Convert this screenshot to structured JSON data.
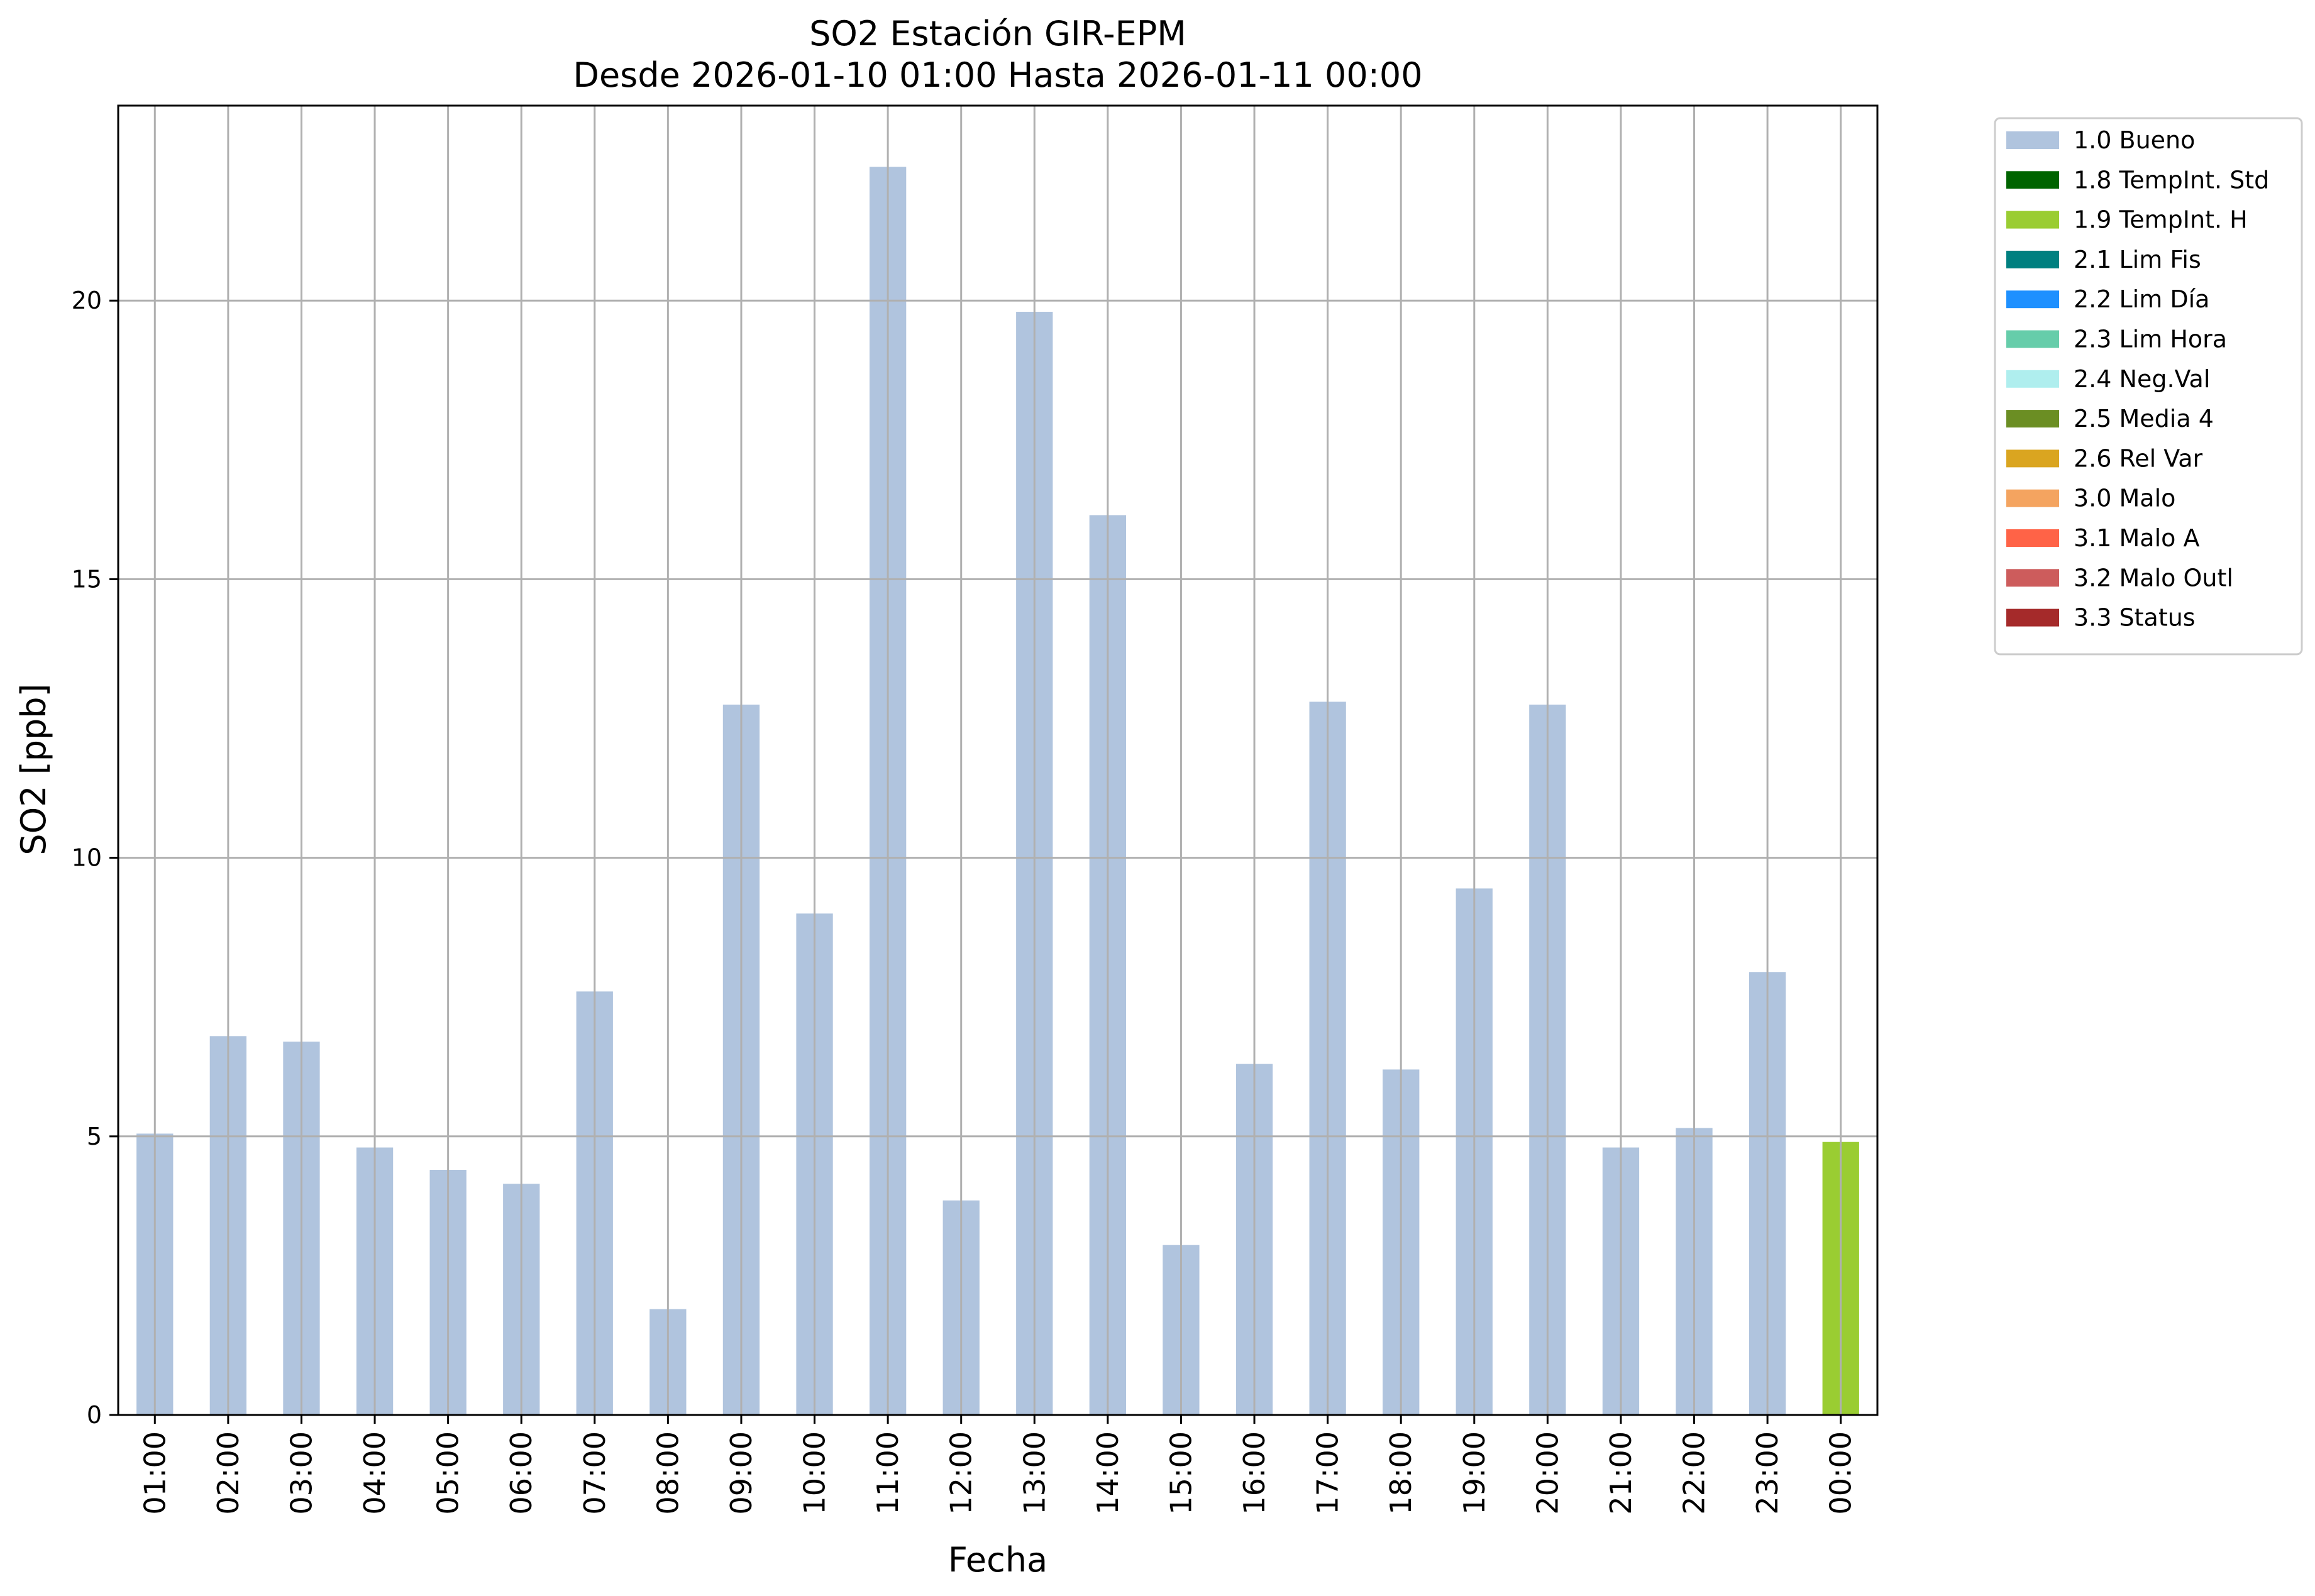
{
  "chart_data": {
    "type": "bar",
    "title": [
      "SO2 Estación GIR-EPM",
      "Desde 2026-01-10 01:00 Hasta 2026-01-11 00:00"
    ],
    "xlabel": "Fecha",
    "ylabel": "SO2 [ppb]",
    "ylim": [
      0,
      23.5
    ],
    "yticks": [
      0,
      5,
      10,
      15,
      20
    ],
    "grid": true,
    "legend_position": "outside-top-right",
    "categories": [
      "01:00",
      "02:00",
      "03:00",
      "04:00",
      "05:00",
      "06:00",
      "07:00",
      "08:00",
      "09:00",
      "10:00",
      "11:00",
      "12:00",
      "13:00",
      "14:00",
      "15:00",
      "16:00",
      "17:00",
      "18:00",
      "19:00",
      "20:00",
      "21:00",
      "22:00",
      "23:00",
      "00:00"
    ],
    "values": [
      5.05,
      6.8,
      6.7,
      4.8,
      4.4,
      4.15,
      7.6,
      1.9,
      12.75,
      9.0,
      22.4,
      3.85,
      19.8,
      16.15,
      3.05,
      6.3,
      12.8,
      6.2,
      9.45,
      12.75,
      4.8,
      5.15,
      7.95,
      4.9
    ],
    "flags": [
      "1.0 Bueno",
      "1.0 Bueno",
      "1.0 Bueno",
      "1.0 Bueno",
      "1.0 Bueno",
      "1.0 Bueno",
      "1.0 Bueno",
      "1.0 Bueno",
      "1.0 Bueno",
      "1.0 Bueno",
      "1.0 Bueno",
      "1.0 Bueno",
      "1.0 Bueno",
      "1.0 Bueno",
      "1.0 Bueno",
      "1.0 Bueno",
      "1.0 Bueno",
      "1.0 Bueno",
      "1.0 Bueno",
      "1.0 Bueno",
      "1.0 Bueno",
      "1.0 Bueno",
      "1.0 Bueno",
      "1.9 TempInt. H"
    ],
    "legend": [
      {
        "label": "1.0 Bueno",
        "color": "#b0c4de"
      },
      {
        "label": "1.8 TempInt. Std",
        "color": "#006400"
      },
      {
        "label": "1.9 TempInt. H",
        "color": "#9acd32"
      },
      {
        "label": "2.1 Lim Fis",
        "color": "#008080"
      },
      {
        "label": "2.2 Lim Día",
        "color": "#1e90ff"
      },
      {
        "label": "2.3 Lim Hora",
        "color": "#66cdaa"
      },
      {
        "label": "2.4 Neg.Val",
        "color": "#afeeee"
      },
      {
        "label": "2.5 Media 4",
        "color": "#6b8e23"
      },
      {
        "label": "2.6 Rel Var",
        "color": "#daa520"
      },
      {
        "label": "3.0 Malo",
        "color": "#f4a460"
      },
      {
        "label": "3.1 Malo A",
        "color": "#ff6347"
      },
      {
        "label": "3.2 Malo Outl",
        "color": "#cd5c5c"
      },
      {
        "label": "3.3 Status",
        "color": "#a52a2a"
      }
    ]
  }
}
